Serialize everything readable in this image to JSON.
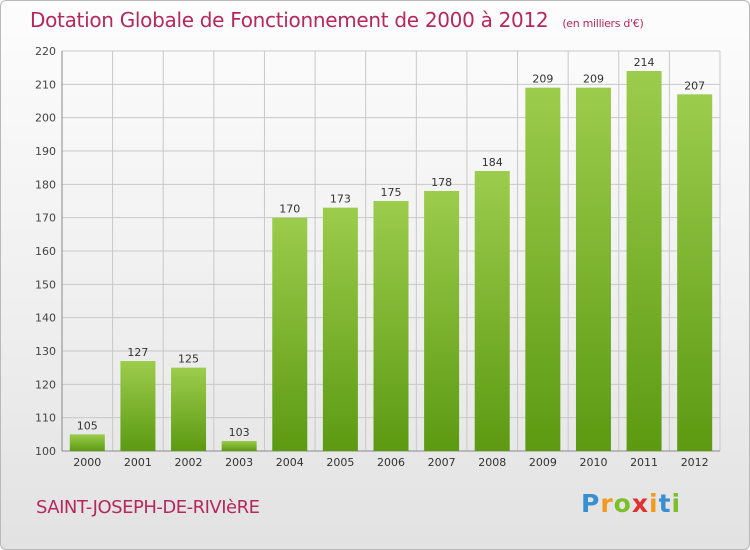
{
  "title": "Dotation Globale de Fonctionnement de 2000 à 2012",
  "unit": "(en milliers d'€)",
  "commune": "SAINT-JOSEPH-DE-RIVIèRE",
  "logo": "Proxiti",
  "colors": {
    "title": "#b5285c",
    "bar_top": "#9ccc4c",
    "bar_bottom": "#5c9a12",
    "grid": "#c8c8c8"
  },
  "chart_data": {
    "type": "bar",
    "categories": [
      "2000",
      "2001",
      "2002",
      "2003",
      "2004",
      "2005",
      "2006",
      "2007",
      "2008",
      "2009",
      "2010",
      "2011",
      "2012"
    ],
    "values": [
      105,
      127,
      125,
      103,
      170,
      173,
      175,
      178,
      184,
      209,
      209,
      214,
      207
    ],
    "data_labels": [
      "105",
      "127",
      "125",
      "103",
      "170",
      "173",
      "175",
      "178",
      "184",
      "209",
      "209",
      "214",
      "207"
    ],
    "ylim": [
      100,
      220
    ],
    "yticks": [
      100,
      110,
      120,
      130,
      140,
      150,
      160,
      170,
      180,
      190,
      200,
      210,
      220
    ],
    "grid": true,
    "xlabel": "",
    "ylabel": ""
  }
}
